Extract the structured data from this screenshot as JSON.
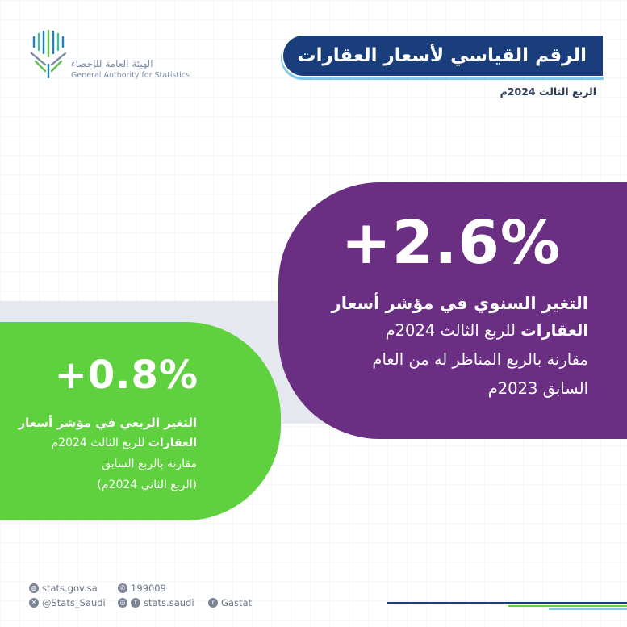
{
  "header": {
    "logo_ar": "الهيئة العامة للإحصاء",
    "logo_en": "General Authority for Statistics",
    "title": "الرقم القياسي لأسعار العقارات",
    "subtitle": "الربع الثالث 2024م"
  },
  "annual_card": {
    "value": "+2.6%",
    "line1": "التغير السنوي في مؤشر أسعار",
    "line2_bold": "العقارات",
    "line2_rest": "للربع الثالث 2024م",
    "line3": "مقارنة بالربع المناظر له من العام",
    "line4": "السابق 2023م"
  },
  "quarterly_card": {
    "value": "+0.8%",
    "line1": "التغير الربعي في مؤشر أسعار",
    "line2_bold": "العقارات",
    "line2_rest": "للربع الثالث 2024م",
    "line3": "مقارنة بالربع السابق",
    "line4": "(الربع الثاني 2024م)"
  },
  "footer": {
    "website": "stats.gov.sa",
    "phone": "199009",
    "x_handle": "@Stats_Saudi",
    "social_handle": "stats.saudi",
    "linkedin": "Gastat"
  },
  "colors": {
    "title_bg": "#1a3d7c",
    "purple_card": "#6a2f82",
    "green_card": "#5fd13e",
    "band": "#e6e8ef"
  }
}
